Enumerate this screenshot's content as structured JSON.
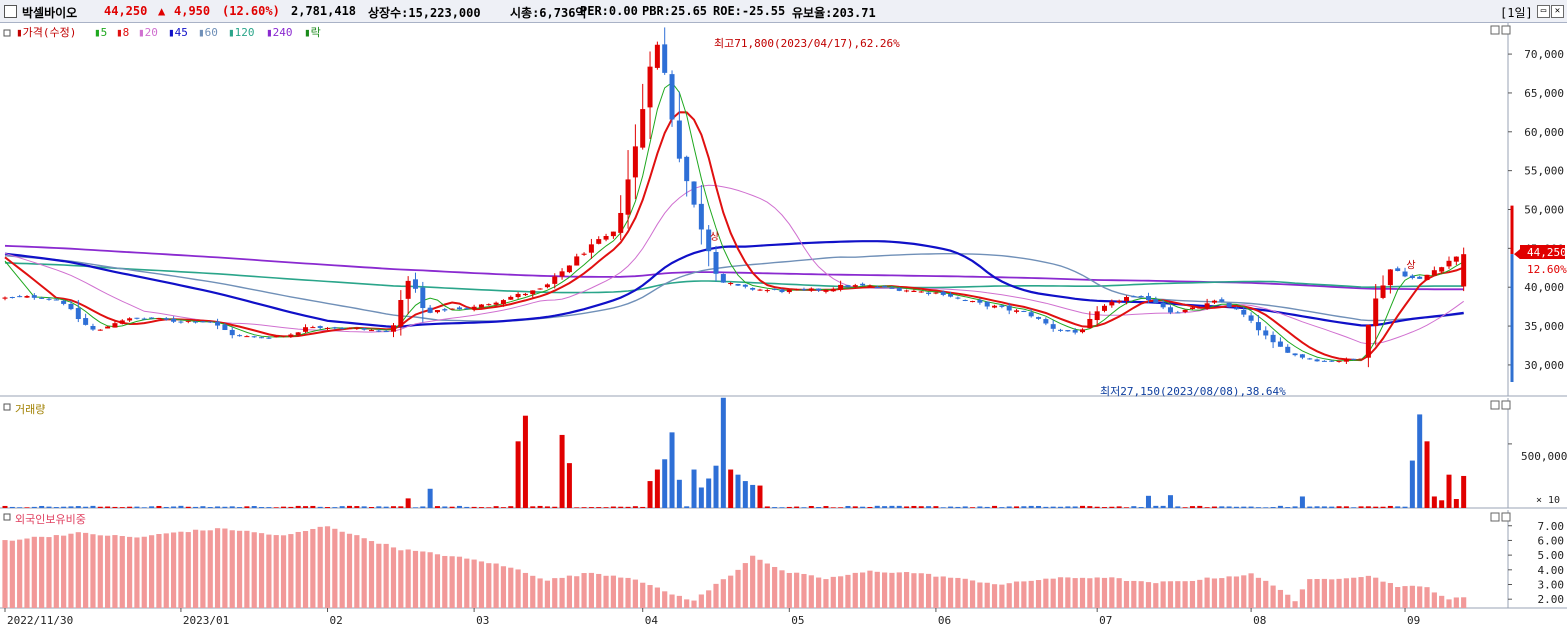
{
  "header": {
    "name": "박셀바이오",
    "price": "44,250",
    "change_arrow": "▲",
    "change": "4,950",
    "change_pct": "(12.60%)",
    "volume": "2,781,418",
    "listed": "상장수:15,223,000",
    "mcap": "시총:6,736억",
    "per": "PER:0.00",
    "pbr": "PBR:25.65",
    "roe": "ROE:-25.55",
    "retention": "유보율:203.71",
    "period": "[1일]"
  },
  "legend": {
    "price": "가격(수정)",
    "ma": [
      {
        "label": "5",
        "color": "#1fa81f"
      },
      {
        "label": "8",
        "color": "#e01010"
      },
      {
        "label": "20",
        "color": "#d070d0"
      },
      {
        "label": "45",
        "color": "#1010c8"
      },
      {
        "label": "60",
        "color": "#7090b8"
      },
      {
        "label": "120",
        "color": "#2aa58a"
      },
      {
        "label": "240",
        "color": "#8a2ad0"
      },
      {
        "label": "락",
        "color": "#1a8a1a"
      }
    ],
    "volume": "거래량",
    "foreign": "외국인보유비중"
  },
  "annotations": {
    "high": "최고71,800(2023/04/17),62.26%",
    "low": "최저27,150(2023/08/08),38.64%",
    "limit_up": "상"
  },
  "labels": {
    "last_price": "44,250",
    "last_pct": "12.60%",
    "vol_tick": "500,000",
    "vol_unit": "× 10"
  },
  "chart_data": [
    {
      "type": "candlestick",
      "title": "가격(수정)",
      "n_bars": 200,
      "ylim": [
        26000,
        74000
      ],
      "yticks": [
        30000,
        35000,
        40000,
        45000,
        50000,
        55000,
        60000,
        65000,
        70000
      ],
      "ytick_labels": [
        "30,000",
        "35,000",
        "40,000",
        "45,000",
        "50,000",
        "55,000",
        "60,000",
        "65,000",
        "70,000"
      ],
      "close_points": [
        [
          0,
          38600
        ],
        [
          9,
          38800
        ],
        [
          15,
          38200
        ],
        [
          20,
          35500
        ],
        [
          24,
          34200
        ],
        [
          30,
          35800
        ],
        [
          38,
          36000
        ],
        [
          45,
          35600
        ],
        [
          53,
          35700
        ],
        [
          60,
          33800
        ],
        [
          66,
          33500
        ],
        [
          74,
          33800
        ],
        [
          80,
          35000
        ],
        [
          87,
          34800
        ],
        [
          93,
          34600
        ],
        [
          101,
          34200
        ],
        [
          106,
          41600
        ],
        [
          110,
          36500
        ],
        [
          116,
          37200
        ],
        [
          123,
          37400
        ],
        [
          132,
          38700
        ],
        [
          141,
          39800
        ],
        [
          150,
          43900
        ],
        [
          155,
          45800
        ],
        [
          160,
          47100
        ],
        [
          166,
          60000
        ],
        [
          170,
          72000
        ],
        [
          172,
          69800
        ],
        [
          176,
          57800
        ],
        [
          181,
          49600
        ],
        [
          187,
          40800
        ],
        [
          193,
          39900
        ],
        [
          200,
          39600
        ],
        [
          207,
          39500
        ],
        [
          214,
          39700
        ],
        [
          220,
          40200
        ],
        [
          227,
          40100
        ],
        [
          232,
          39900
        ],
        [
          240,
          39400
        ],
        [
          246,
          39200
        ],
        [
          250,
          38400
        ],
        [
          256,
          37800
        ],
        [
          262,
          37200
        ],
        [
          268,
          36600
        ],
        [
          275,
          34600
        ],
        [
          281,
          34100
        ],
        [
          287,
          37200
        ],
        [
          293,
          38700
        ],
        [
          300,
          38500
        ],
        [
          306,
          36700
        ],
        [
          312,
          37300
        ],
        [
          318,
          38300
        ],
        [
          324,
          36600
        ],
        [
          332,
          32800
        ],
        [
          338,
          31200
        ],
        [
          345,
          30500
        ],
        [
          355,
          30700
        ],
        [
          358,
          37500
        ],
        [
          363,
          42500
        ],
        [
          370,
          40800
        ],
        [
          378,
          43400
        ],
        [
          382,
          44250
        ]
      ],
      "x_labels": [
        {
          "i": 0,
          "t": "2022/11/30"
        },
        {
          "i": 24,
          "t": "2023/01"
        },
        {
          "i": 44,
          "t": "02"
        },
        {
          "i": 64,
          "t": "03"
        },
        {
          "i": 87,
          "t": "04"
        },
        {
          "i": 107,
          "t": "05"
        },
        {
          "i": 127,
          "t": "06"
        },
        {
          "i": 149,
          "t": "07"
        },
        {
          "i": 170,
          "t": "08"
        },
        {
          "i": 191,
          "t": "09"
        }
      ],
      "limit_up_bars": [
        97,
        192
      ],
      "last_close": 44250
    },
    {
      "type": "bar",
      "title": "거래량",
      "ylim": [
        0,
        780000
      ],
      "yticks": [
        500000
      ],
      "spikes": [
        {
          "i": 55,
          "v": 75000
        },
        {
          "i": 58,
          "v": 150000
        },
        {
          "i": 70,
          "v": 520000
        },
        {
          "i": 71,
          "v": 720000
        },
        {
          "i": 76,
          "v": 570000
        },
        {
          "i": 77,
          "v": 350000
        },
        {
          "i": 88,
          "v": 210000
        },
        {
          "i": 89,
          "v": 300000
        },
        {
          "i": 90,
          "v": 380000
        },
        {
          "i": 91,
          "v": 590000
        },
        {
          "i": 92,
          "v": 220000
        },
        {
          "i": 94,
          "v": 300000
        },
        {
          "i": 95,
          "v": 160000
        },
        {
          "i": 96,
          "v": 230000
        },
        {
          "i": 97,
          "v": 330000
        },
        {
          "i": 98,
          "v": 860000
        },
        {
          "i": 99,
          "v": 300000
        },
        {
          "i": 100,
          "v": 260000
        },
        {
          "i": 101,
          "v": 210000
        },
        {
          "i": 102,
          "v": 180000
        },
        {
          "i": 103,
          "v": 175000
        },
        {
          "i": 156,
          "v": 95000
        },
        {
          "i": 159,
          "v": 100000
        },
        {
          "i": 177,
          "v": 90000
        },
        {
          "i": 192,
          "v": 370000
        },
        {
          "i": 193,
          "v": 730000
        },
        {
          "i": 194,
          "v": 520000
        },
        {
          "i": 195,
          "v": 90000
        },
        {
          "i": 196,
          "v": 60000
        },
        {
          "i": 197,
          "v": 260000
        },
        {
          "i": 198,
          "v": 70000
        },
        {
          "i": 199,
          "v": 250000
        }
      ]
    },
    {
      "type": "bar",
      "title": "외국인보유비중",
      "ylim": [
        1.4,
        7.8
      ],
      "yticks": [
        2,
        3,
        4,
        5,
        6,
        7
      ],
      "ytick_labels": [
        "2.00",
        "3.00",
        "4.00",
        "5.00",
        "6.00",
        "7.00"
      ],
      "points": [
        [
          0,
          6.0
        ],
        [
          10,
          6.5
        ],
        [
          18,
          6.2
        ],
        [
          24,
          6.6
        ],
        [
          30,
          6.8
        ],
        [
          38,
          6.3
        ],
        [
          44,
          7.0
        ],
        [
          48,
          6.3
        ],
        [
          54,
          5.4
        ],
        [
          60,
          5.0
        ],
        [
          66,
          4.5
        ],
        [
          70,
          4.0
        ],
        [
          74,
          3.3
        ],
        [
          80,
          3.8
        ],
        [
          86,
          3.4
        ],
        [
          90,
          2.5
        ],
        [
          94,
          1.9
        ],
        [
          97,
          3.0
        ],
        [
          100,
          4.0
        ],
        [
          102,
          5.0
        ],
        [
          106,
          3.9
        ],
        [
          112,
          3.4
        ],
        [
          118,
          3.9
        ],
        [
          124,
          3.8
        ],
        [
          130,
          3.4
        ],
        [
          136,
          3.0
        ],
        [
          142,
          3.4
        ],
        [
          150,
          3.5
        ],
        [
          156,
          3.1
        ],
        [
          160,
          3.2
        ],
        [
          166,
          3.5
        ],
        [
          170,
          3.7
        ],
        [
          174,
          2.7
        ],
        [
          176,
          1.9
        ],
        [
          178,
          3.3
        ],
        [
          186,
          3.6
        ],
        [
          190,
          2.9
        ],
        [
          194,
          2.8
        ],
        [
          197,
          2.0
        ],
        [
          199,
          2.1
        ]
      ]
    }
  ]
}
